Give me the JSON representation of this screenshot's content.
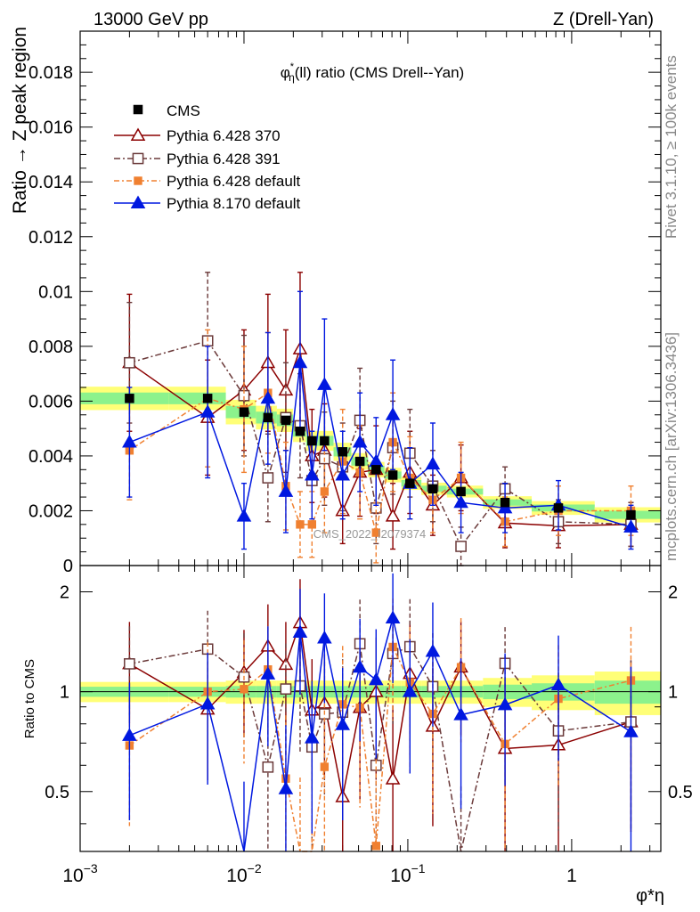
{
  "header": {
    "left": "13000 GeV pp",
    "right": "Z (Drell-Yan)"
  },
  "side": {
    "rivet": "Rivet 3.1.10, ≥ 100k events",
    "mcplots": "mcplots.cern.ch [arXiv:1306.3436]"
  },
  "chart_data": {
    "type": "scatter",
    "title": "φ*η(ll) ratio (CMS Drell--Yan)",
    "watermark": "CMS_2022_I2079374",
    "xlabel": "φ*η",
    "ylabel_top": "Ratio → Z peak region",
    "ylabel_bottom": "Ratio to CMS",
    "xscale": "log",
    "xlim": [
      0.001,
      3.5
    ],
    "ylim_top": [
      0,
      0.0195
    ],
    "ylim_bottom": [
      0.33,
      2.4
    ],
    "bottom_log": true,
    "x_ticks": [
      {
        "v": 0.001,
        "base": "10",
        "exp": "−3"
      },
      {
        "v": 0.01,
        "base": "10",
        "exp": "−2"
      },
      {
        "v": 0.1,
        "base": "10",
        "exp": "−1"
      },
      {
        "v": 1,
        "base": "1",
        "exp": ""
      }
    ],
    "y_ticks_top": [
      {
        "v": 0,
        "label": "0"
      },
      {
        "v": 0.002,
        "label": "0.002"
      },
      {
        "v": 0.004,
        "label": "0.004"
      },
      {
        "v": 0.006,
        "label": "0.006"
      },
      {
        "v": 0.008,
        "label": "0.008"
      },
      {
        "v": 0.01,
        "label": "0.01"
      },
      {
        "v": 0.012,
        "label": "0.012"
      },
      {
        "v": 0.014,
        "label": "0.014"
      },
      {
        "v": 0.016,
        "label": "0.016"
      },
      {
        "v": 0.018,
        "label": "0.018"
      }
    ],
    "y_ticks_bottom": [
      {
        "v": 0.5,
        "label": "0.5"
      },
      {
        "v": 1,
        "label": "1"
      },
      {
        "v": 2,
        "label": "2"
      }
    ],
    "x": [
      0.002,
      0.006,
      0.01,
      0.014,
      0.018,
      0.022,
      0.026,
      0.031,
      0.04,
      0.051,
      0.064,
      0.081,
      0.103,
      0.142,
      0.211,
      0.392,
      0.83,
      2.3
    ],
    "data": {
      "name": "CMS",
      "y": [
        0.0061,
        0.0061,
        0.0056,
        0.0054,
        0.0053,
        0.0049,
        0.00455,
        0.00455,
        0.00415,
        0.0038,
        0.0035,
        0.0033,
        0.003,
        0.0028,
        0.0027,
        0.0023,
        0.0021,
        0.00185
      ],
      "band_inner": [
        0.035,
        0.035,
        0.04,
        0.04,
        0.04,
        0.04,
        0.04,
        0.04,
        0.04,
        0.04,
        0.04,
        0.04,
        0.04,
        0.04,
        0.04,
        0.05,
        0.06,
        0.08
      ],
      "band_outer": [
        0.07,
        0.07,
        0.08,
        0.08,
        0.08,
        0.08,
        0.08,
        0.08,
        0.08,
        0.08,
        0.08,
        0.08,
        0.08,
        0.08,
        0.08,
        0.1,
        0.12,
        0.15
      ]
    },
    "series": [
      {
        "name": "Pythia 6.428 370",
        "color": "#8b0000",
        "marker": "triangle-open",
        "dash": "",
        "y": [
          0.0074,
          0.0054,
          0.0064,
          0.0074,
          0.0064,
          0.0079,
          0.004,
          0.0042,
          0.002,
          0.0034,
          0.0035,
          0.0018,
          0.0034,
          0.0022,
          0.0032,
          0.00155,
          0.00145,
          0.0015
        ],
        "err": [
          0.0025,
          0.0021,
          0.0022,
          0.0025,
          0.0022,
          0.0028,
          0.0017,
          0.0017,
          0.0012,
          0.0016,
          0.0016,
          0.0012,
          0.0015,
          0.0011,
          0.0012,
          0.0009,
          0.0008,
          0.0008
        ]
      },
      {
        "name": "Pythia 6.428 391",
        "color": "#6b3a3a",
        "marker": "square-open",
        "dash": "7,3,2,3",
        "y": [
          0.0074,
          0.0082,
          0.0062,
          0.0032,
          0.0054,
          0.0051,
          0.0031,
          0.0039,
          0.0036,
          0.0053,
          0.0021,
          0.0043,
          0.0041,
          0.0029,
          0.0007,
          0.0028,
          0.0016,
          0.0015
        ],
        "err": [
          0.0022,
          0.0025,
          0.0022,
          0.0016,
          0.002,
          0.0019,
          0.0016,
          0.0017,
          0.0016,
          0.0019,
          0.0013,
          0.0017,
          0.0016,
          0.0013,
          0.0007,
          0.0008,
          0.0008,
          0.0008
        ]
      },
      {
        "name": "Pythia 6.428 default",
        "color": "#f08030",
        "marker": "square-filled",
        "dash": "6,3,2,3",
        "y": [
          0.0042,
          0.0061,
          0.0057,
          0.0063,
          0.0029,
          0.0015,
          0.0015,
          0.0027,
          0.0038,
          0.0034,
          0.0012,
          0.0045,
          0.0032,
          0.0024,
          0.0032,
          0.0016,
          0.002,
          0.002
        ],
        "err": [
          0.0018,
          0.0025,
          0.0023,
          0.0022,
          0.0016,
          0.0012,
          0.0012,
          0.0015,
          0.0019,
          0.0017,
          0.0011,
          0.0018,
          0.0015,
          0.0012,
          0.0013,
          0.0009,
          0.0009,
          0.0009
        ]
      },
      {
        "name": "Pythia 8.170 default",
        "color": "#0018e0",
        "marker": "triangle-filled",
        "dash": "",
        "y": [
          0.0045,
          0.0056,
          0.0018,
          0.0061,
          0.0027,
          0.0074,
          0.0033,
          0.0066,
          0.0033,
          0.0045,
          0.0038,
          0.0055,
          0.003,
          0.0037,
          0.0023,
          0.0021,
          0.0022,
          0.0014
        ],
        "err": [
          0.002,
          0.0024,
          0.0012,
          0.0024,
          0.0015,
          0.0026,
          0.0016,
          0.0024,
          0.0016,
          0.0018,
          0.0016,
          0.002,
          0.0013,
          0.0015,
          0.0011,
          0.0009,
          0.0009,
          0.0008
        ]
      }
    ]
  }
}
